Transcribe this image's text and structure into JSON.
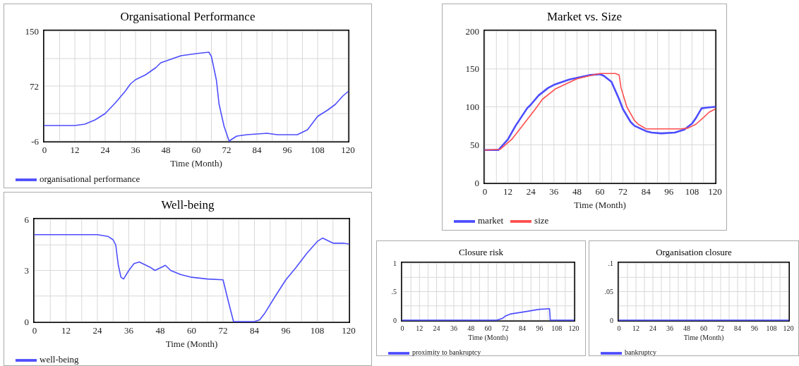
{
  "chart_data": [
    {
      "type": "line",
      "title": "Organisational Performance",
      "xlabel": "Time (Month)",
      "xlim": [
        0,
        120
      ],
      "xticks": [
        0,
        {
          "value": 6,
          "label": null
        },
        12,
        {
          "value": 18,
          "label": null
        },
        24,
        {
          "value": 30,
          "label": null
        },
        36,
        {
          "value": 42,
          "label": null
        },
        48,
        {
          "value": 54,
          "label": null
        },
        60,
        {
          "value": 66,
          "label": null
        },
        72,
        {
          "value": 78,
          "label": null
        },
        84,
        {
          "value": 90,
          "label": null
        },
        96,
        {
          "value": 102,
          "label": null
        },
        108,
        {
          "value": 114,
          "label": null
        },
        120
      ],
      "ylim": [
        -6,
        150
      ],
      "yticks": [
        -6,
        {
          "value": 33,
          "label": null
        },
        72,
        {
          "value": 111,
          "label": null
        },
        150
      ],
      "grid": true,
      "legend": "bottom",
      "series": [
        {
          "name": "organisational performance",
          "color": "#4d4dff",
          "x": [
            0,
            12,
            16,
            20,
            24,
            28,
            32,
            34,
            36,
            40,
            44,
            46,
            50,
            54,
            60,
            65,
            66,
            68,
            69,
            71,
            73,
            76,
            80,
            84,
            88,
            92,
            100,
            104,
            108,
            112,
            115,
            118,
            120
          ],
          "values": [
            16,
            16,
            18,
            24,
            33,
            48,
            65,
            75,
            81,
            88,
            98,
            105,
            110,
            115,
            118,
            120,
            114,
            80,
            47,
            15,
            -6,
            1,
            3,
            4,
            5,
            3,
            3,
            10,
            29,
            38,
            46,
            58,
            64
          ]
        }
      ]
    },
    {
      "type": "line",
      "title": "Market vs. Size",
      "xlabel": "Time (Month)",
      "xlim": [
        0,
        120
      ],
      "xticks": [
        0,
        {
          "value": 6,
          "label": null
        },
        12,
        {
          "value": 18,
          "label": null
        },
        24,
        {
          "value": 30,
          "label": null
        },
        36,
        {
          "value": 42,
          "label": null
        },
        48,
        {
          "value": 54,
          "label": null
        },
        60,
        {
          "value": 66,
          "label": null
        },
        72,
        {
          "value": 78,
          "label": null
        },
        84,
        {
          "value": 90,
          "label": null
        },
        96,
        {
          "value": 102,
          "label": null
        },
        108,
        {
          "value": 114,
          "label": null
        },
        120
      ],
      "ylim": [
        0,
        200
      ],
      "yticks": [
        0,
        50,
        100,
        150,
        200
      ],
      "grid": true,
      "legend": "bottom",
      "series": [
        {
          "name": "market",
          "color": "#4d4dff",
          "x": [
            0,
            7,
            12,
            16,
            22,
            24,
            28,
            33,
            36,
            44,
            55,
            60,
            62,
            66,
            70,
            72,
            76,
            78,
            84,
            87,
            92,
            99,
            104,
            108,
            110,
            113,
            116,
            120
          ],
          "values": [
            43,
            43,
            57,
            75,
            98,
            103,
            115,
            125,
            129,
            136,
            142,
            143,
            141,
            133,
            110,
            97,
            80,
            75,
            68,
            66,
            65,
            66,
            70,
            78,
            85,
            98,
            99,
            100
          ]
        },
        {
          "name": "size",
          "color": "#ff4d4d",
          "x": [
            0,
            8,
            14,
            18,
            26,
            30,
            37,
            48,
            58,
            60,
            68,
            70,
            71,
            74,
            78,
            80,
            84,
            90,
            102,
            106,
            110,
            114,
            117,
            120
          ],
          "values": [
            43,
            44,
            57,
            70,
            96,
            110,
            124,
            137,
            143,
            144,
            144,
            142,
            125,
            100,
            82,
            77,
            71,
            71,
            71,
            72,
            77,
            86,
            93,
            97
          ]
        }
      ]
    },
    {
      "type": "line",
      "title": "Well-being",
      "xlabel": "Time (Month)",
      "xlim": [
        0,
        120
      ],
      "xticks": [
        0,
        {
          "value": 6,
          "label": null
        },
        12,
        {
          "value": 18,
          "label": null
        },
        24,
        {
          "value": 30,
          "label": null
        },
        36,
        {
          "value": 42,
          "label": null
        },
        48,
        {
          "value": 54,
          "label": null
        },
        60,
        {
          "value": 66,
          "label": null
        },
        72,
        {
          "value": 78,
          "label": null
        },
        84,
        {
          "value": 90,
          "label": null
        },
        96,
        {
          "value": 102,
          "label": null
        },
        108,
        {
          "value": 114,
          "label": null
        },
        120
      ],
      "ylim": [
        0,
        6
      ],
      "yticks": [
        0,
        {
          "value": 1.5,
          "label": null
        },
        3,
        {
          "value": 4.5,
          "label": null
        },
        6
      ],
      "grid": true,
      "legend": "bottom",
      "series": [
        {
          "name": "well-being",
          "color": "#4d4dff",
          "x": [
            0,
            24,
            28,
            30,
            31,
            32,
            33,
            34,
            36,
            38,
            40,
            44,
            46,
            50,
            52,
            56,
            60,
            66,
            72,
            74,
            76,
            84,
            86,
            88,
            92,
            96,
            100,
            104,
            108,
            110,
            114,
            118,
            120
          ],
          "values": [
            5.1,
            5.1,
            5.0,
            4.8,
            4.5,
            3.3,
            2.6,
            2.5,
            3.0,
            3.4,
            3.5,
            3.2,
            3.0,
            3.3,
            3.0,
            2.75,
            2.6,
            2.5,
            2.45,
            1.2,
            0,
            0,
            0.1,
            0.5,
            1.5,
            2.45,
            3.2,
            4.0,
            4.7,
            4.9,
            4.6,
            4.6,
            4.55
          ]
        }
      ]
    },
    {
      "type": "line",
      "title": "Closure risk",
      "xlabel": "Time (Month)",
      "xlim": [
        0,
        120
      ],
      "xticks": [
        0,
        {
          "value": 6,
          "label": null
        },
        12,
        {
          "value": 18,
          "label": null
        },
        24,
        {
          "value": 30,
          "label": null
        },
        36,
        {
          "value": 42,
          "label": null
        },
        48,
        {
          "value": 54,
          "label": null
        },
        60,
        {
          "value": 66,
          "label": null
        },
        72,
        {
          "value": 78,
          "label": null
        },
        84,
        {
          "value": 90,
          "label": null
        },
        96,
        {
          "value": 102,
          "label": null
        },
        108,
        {
          "value": 114,
          "label": null
        },
        120
      ],
      "ylim": [
        0,
        1
      ],
      "yticks": [
        0,
        {
          "value": 0.25,
          "label": null
        },
        {
          "value": 0.5,
          "label": ".5"
        },
        {
          "value": 0.75,
          "label": null
        },
        1
      ],
      "grid": true,
      "legend": "bottom",
      "series": [
        {
          "name": "proximity to bankruptcy",
          "color": "#4d4dff",
          "x": [
            0,
            66,
            70,
            72,
            76,
            84,
            96,
            103,
            103.5,
            120
          ],
          "values": [
            0,
            0,
            0.03,
            0.07,
            0.11,
            0.14,
            0.19,
            0.2,
            0,
            0
          ]
        }
      ]
    },
    {
      "type": "line",
      "title": "Organisation closure",
      "xlabel": "Time (Month)",
      "xlim": [
        0,
        120
      ],
      "xticks": [
        0,
        {
          "value": 6,
          "label": null
        },
        12,
        {
          "value": 18,
          "label": null
        },
        24,
        {
          "value": 30,
          "label": null
        },
        36,
        {
          "value": 42,
          "label": null
        },
        48,
        {
          "value": 54,
          "label": null
        },
        60,
        {
          "value": 66,
          "label": null
        },
        72,
        {
          "value": 78,
          "label": null
        },
        84,
        {
          "value": 90,
          "label": null
        },
        96,
        {
          "value": 102,
          "label": null
        },
        108,
        {
          "value": 114,
          "label": null
        },
        120
      ],
      "ylim": [
        0,
        0.1
      ],
      "yticks": [
        0,
        {
          "value": 0.025,
          "label": null
        },
        {
          "value": 0.05,
          "label": ".05"
        },
        {
          "value": 0.075,
          "label": null
        },
        {
          "value": 0.1,
          "label": ".1"
        }
      ],
      "grid": true,
      "legend": "bottom",
      "series": [
        {
          "name": "bankruptcy",
          "color": "#4d4dff",
          "x": [
            0,
            120
          ],
          "values": [
            0,
            0
          ]
        }
      ]
    }
  ]
}
